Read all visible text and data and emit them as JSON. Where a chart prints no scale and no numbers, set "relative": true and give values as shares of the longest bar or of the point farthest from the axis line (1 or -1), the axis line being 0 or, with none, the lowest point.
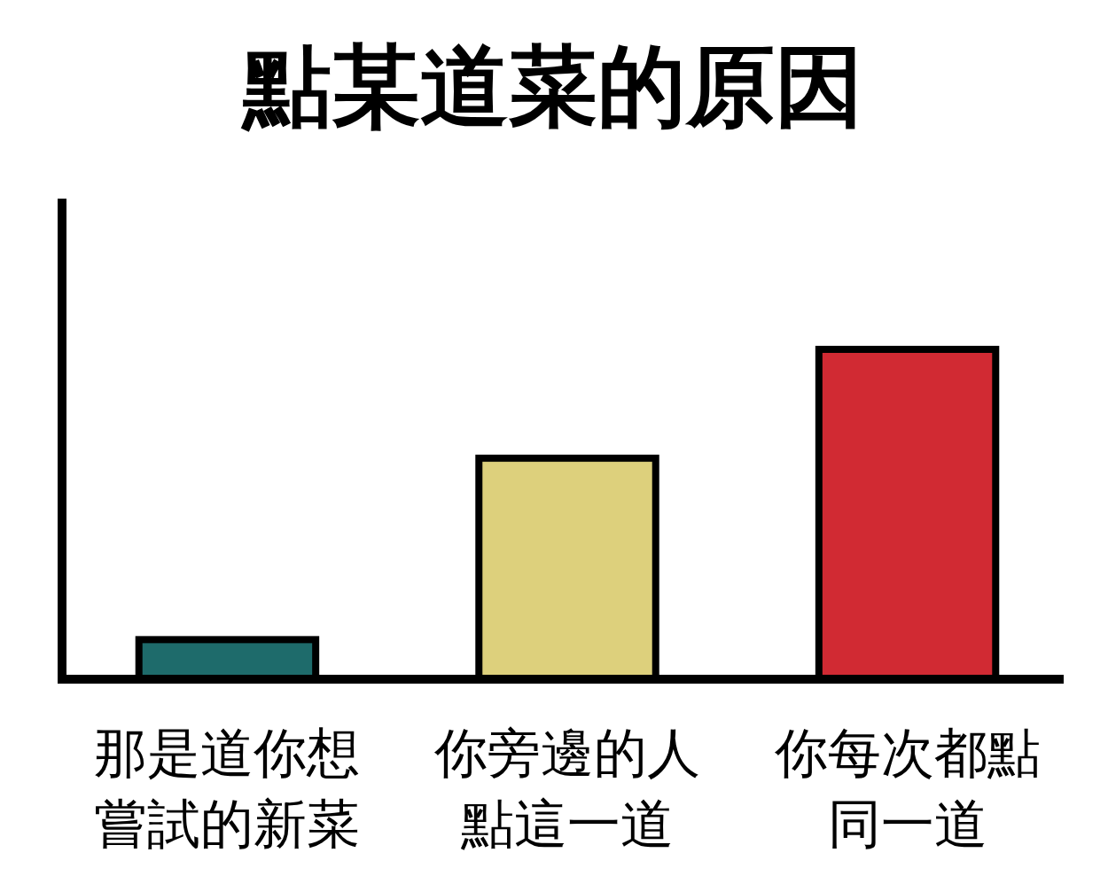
{
  "chart_data": {
    "type": "bar",
    "title": "點某道菜的原因",
    "categories": [
      "那是道你想嘗試的新菜",
      "你旁邊的人點這一道",
      "你每次都點同一道"
    ],
    "values": [
      0.12,
      0.67,
      1
    ],
    "colors": [
      "#1e6b6b",
      "#ddd07c",
      "#d12a33"
    ],
    "relative": true
  }
}
